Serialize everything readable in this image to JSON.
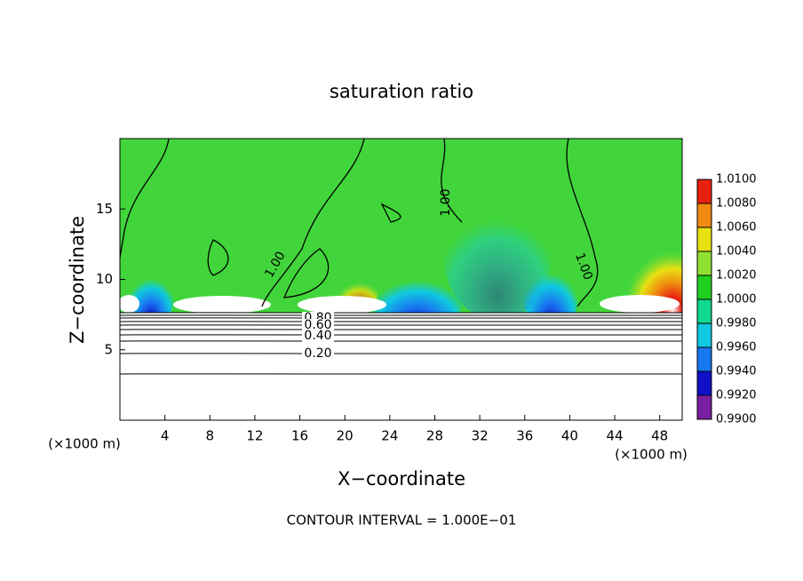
{
  "chart_data": {
    "type": "contour",
    "title": "saturation ratio",
    "x_label": "X−coordinate",
    "y_label": "Z−coordinate",
    "x_unit": "(×1000 m)",
    "y_unit": "(×1000 m)",
    "footer": "CONTOUR INTERVAL = 1.000E−01",
    "xlim": [
      0,
      50
    ],
    "ylim": [
      0,
      20
    ],
    "xticks": [
      4,
      8,
      12,
      16,
      20,
      24,
      28,
      32,
      36,
      40,
      44,
      48
    ],
    "yticks": [
      5,
      10,
      15
    ],
    "contour_labels": [
      {
        "value": 1.0,
        "label": "1.00"
      },
      {
        "value": 1.0,
        "label": "1.00"
      },
      {
        "value": 1.0,
        "label": "1.00"
      },
      {
        "value": 0.8,
        "label": "0.80"
      },
      {
        "value": 0.6,
        "label": "0.60"
      },
      {
        "value": 0.4,
        "label": "0.40"
      },
      {
        "value": 0.2,
        "label": "0.20"
      }
    ],
    "colorbar_ticks": [
      {
        "value": 0.99,
        "label": "0.9900"
      },
      {
        "value": 0.992,
        "label": "0.9920"
      },
      {
        "value": 0.994,
        "label": "0.9940"
      },
      {
        "value": 0.996,
        "label": "0.9960"
      },
      {
        "value": 0.998,
        "label": "0.9980"
      },
      {
        "value": 1.0,
        "label": "1.0000"
      },
      {
        "value": 1.002,
        "label": "1.0020"
      },
      {
        "value": 1.004,
        "label": "1.0040"
      },
      {
        "value": 1.006,
        "label": "1.0060"
      },
      {
        "value": 1.008,
        "label": "1.0080"
      },
      {
        "value": 1.01,
        "label": "1.0100"
      }
    ],
    "colorbar_colors": [
      "#7a1fa0",
      "#1010c8",
      "#1878f0",
      "#10c8e0",
      "#10d890",
      "#20d020",
      "#90e030",
      "#e8e010",
      "#f08a10",
      "#e82010"
    ]
  }
}
